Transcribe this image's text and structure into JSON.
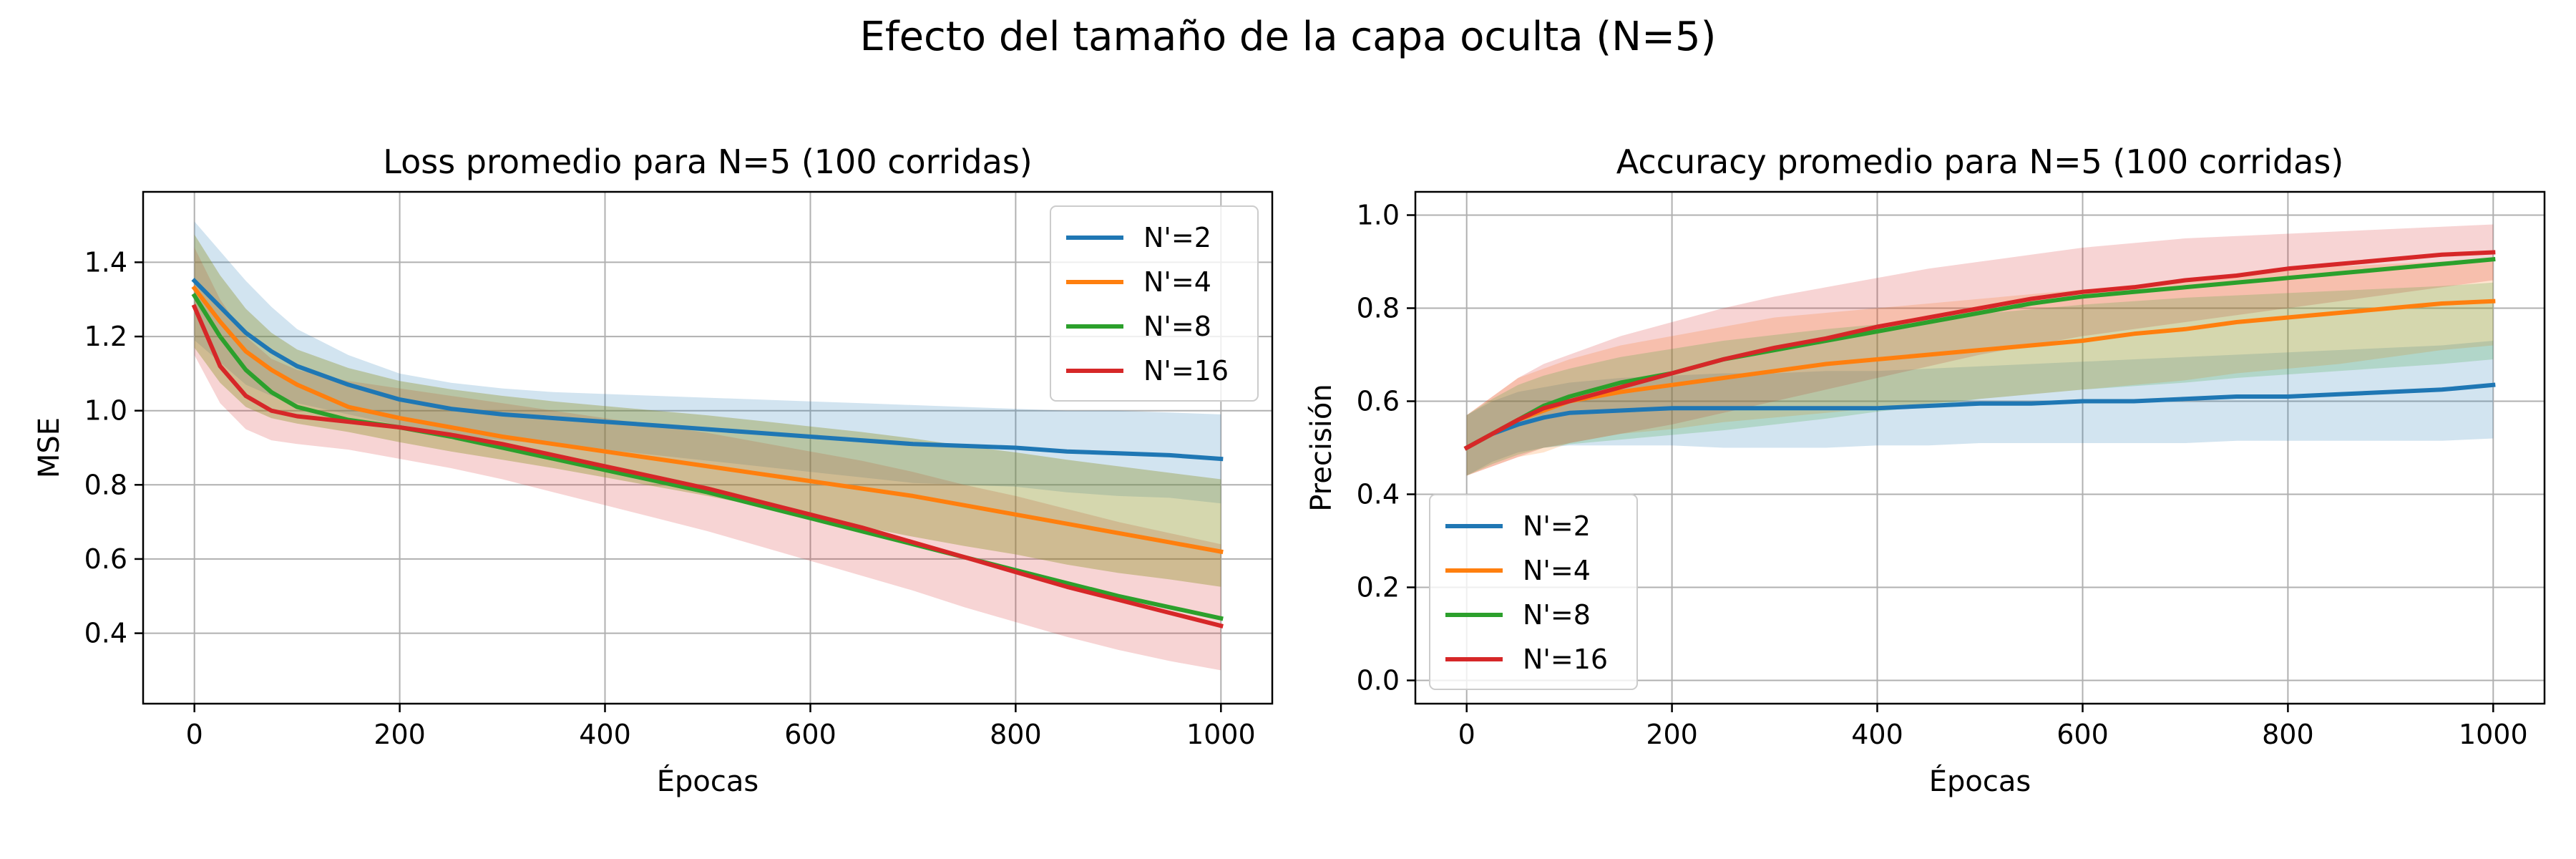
{
  "figure": {
    "suptitle": "Efecto del tamaño de la capa oculta (N=5)"
  },
  "series_meta": [
    {
      "name": "N'=2",
      "color": "#1f77b4"
    },
    {
      "name": "N'=4",
      "color": "#ff7f0e"
    },
    {
      "name": "N'=8",
      "color": "#2ca02c"
    },
    {
      "name": "N'=16",
      "color": "#d62728"
    }
  ],
  "chart_data": [
    {
      "type": "line",
      "title": "Loss promedio para N=5 (100 corridas)",
      "xlabel": "Épocas",
      "ylabel": "MSE",
      "xlim": [
        -50,
        1050
      ],
      "ylim": [
        0.21,
        1.59
      ],
      "xticks": [
        0,
        200,
        400,
        600,
        800,
        1000
      ],
      "yticks": [
        0.4,
        0.6,
        0.8,
        1.0,
        1.2,
        1.4
      ],
      "xtick_labels": [
        "0",
        "200",
        "400",
        "600",
        "800",
        "1000"
      ],
      "ytick_labels": [
        "0.4",
        "0.6",
        "0.8",
        "1.0",
        "1.2",
        "1.4"
      ],
      "grid": true,
      "legend_loc": "upper right",
      "x": [
        0,
        25,
        50,
        75,
        100,
        150,
        200,
        250,
        300,
        350,
        400,
        450,
        500,
        550,
        600,
        650,
        700,
        750,
        800,
        850,
        900,
        950,
        1000
      ],
      "series": [
        {
          "name": "N'=2",
          "values": [
            1.35,
            1.28,
            1.21,
            1.16,
            1.12,
            1.07,
            1.03,
            1.005,
            0.99,
            0.98,
            0.97,
            0.96,
            0.95,
            0.94,
            0.93,
            0.92,
            0.91,
            0.905,
            0.9,
            0.89,
            0.885,
            0.88,
            0.87
          ],
          "upper": [
            1.51,
            1.43,
            1.35,
            1.28,
            1.22,
            1.15,
            1.1,
            1.075,
            1.06,
            1.05,
            1.045,
            1.04,
            1.035,
            1.03,
            1.025,
            1.02,
            1.015,
            1.01,
            1.005,
            1.0,
            1.0,
            0.995,
            0.99
          ],
          "lower": [
            1.19,
            1.13,
            1.07,
            1.04,
            1.02,
            0.99,
            0.96,
            0.935,
            0.92,
            0.91,
            0.895,
            0.88,
            0.865,
            0.85,
            0.835,
            0.82,
            0.805,
            0.8,
            0.795,
            0.78,
            0.77,
            0.765,
            0.75
          ]
        },
        {
          "name": "N'=4",
          "values": [
            1.33,
            1.24,
            1.16,
            1.11,
            1.07,
            1.01,
            0.98,
            0.955,
            0.93,
            0.91,
            0.89,
            0.87,
            0.85,
            0.83,
            0.81,
            0.79,
            0.77,
            0.745,
            0.72,
            0.695,
            0.67,
            0.645,
            0.62
          ]
        },
        {
          "name": "N'=8",
          "values": [
            1.31,
            1.2,
            1.11,
            1.05,
            1.01,
            0.975,
            0.955,
            0.93,
            0.9,
            0.87,
            0.84,
            0.81,
            0.78,
            0.745,
            0.71,
            0.675,
            0.64,
            0.605,
            0.57,
            0.535,
            0.5,
            0.47,
            0.44
          ]
        },
        {
          "name": "N'=16",
          "values": [
            1.28,
            1.12,
            1.04,
            1.0,
            0.985,
            0.97,
            0.955,
            0.935,
            0.91,
            0.88,
            0.85,
            0.82,
            0.79,
            0.755,
            0.72,
            0.685,
            0.645,
            0.605,
            0.565,
            0.525,
            0.49,
            0.455,
            0.42
          ],
          "upper": [
            1.44,
            1.3,
            1.2,
            1.14,
            1.11,
            1.08,
            1.06,
            1.04,
            1.02,
            1.0,
            0.98,
            0.96,
            0.94,
            0.915,
            0.89,
            0.865,
            0.835,
            0.8,
            0.77,
            0.735,
            0.7,
            0.67,
            0.64
          ],
          "lower": [
            1.15,
            1.02,
            0.95,
            0.92,
            0.91,
            0.895,
            0.87,
            0.845,
            0.815,
            0.78,
            0.745,
            0.71,
            0.675,
            0.635,
            0.595,
            0.555,
            0.515,
            0.47,
            0.43,
            0.39,
            0.355,
            0.325,
            0.3
          ]
        }
      ]
    },
    {
      "type": "line",
      "title": "Accuracy promedio para N=5 (100 corridas)",
      "xlabel": "Épocas",
      "ylabel": "Precisión",
      "xlim": [
        -50,
        1050
      ],
      "ylim": [
        -0.05,
        1.05
      ],
      "xticks": [
        0,
        200,
        400,
        600,
        800,
        1000
      ],
      "yticks": [
        0.0,
        0.2,
        0.4,
        0.6,
        0.8,
        1.0
      ],
      "xtick_labels": [
        "0",
        "200",
        "400",
        "600",
        "800",
        "1000"
      ],
      "ytick_labels": [
        "0.0",
        "0.2",
        "0.4",
        "0.6",
        "0.8",
        "1.0"
      ],
      "grid": true,
      "legend_loc": "lower left",
      "x": [
        0,
        25,
        50,
        75,
        100,
        150,
        200,
        250,
        300,
        350,
        400,
        450,
        500,
        550,
        600,
        650,
        700,
        750,
        800,
        850,
        900,
        950,
        1000
      ],
      "series": [
        {
          "name": "N'=2",
          "values": [
            0.5,
            0.53,
            0.55,
            0.565,
            0.575,
            0.58,
            0.585,
            0.585,
            0.585,
            0.585,
            0.585,
            0.59,
            0.595,
            0.595,
            0.6,
            0.6,
            0.605,
            0.61,
            0.61,
            0.615,
            0.62,
            0.625,
            0.635
          ],
          "upper": [
            0.57,
            0.6,
            0.62,
            0.63,
            0.64,
            0.65,
            0.655,
            0.66,
            0.66,
            0.665,
            0.665,
            0.67,
            0.675,
            0.68,
            0.685,
            0.69,
            0.695,
            0.7,
            0.705,
            0.71,
            0.715,
            0.72,
            0.73
          ],
          "lower": [
            0.44,
            0.47,
            0.49,
            0.5,
            0.505,
            0.505,
            0.505,
            0.5,
            0.5,
            0.5,
            0.505,
            0.505,
            0.51,
            0.51,
            0.51,
            0.51,
            0.51,
            0.515,
            0.515,
            0.515,
            0.515,
            0.515,
            0.52
          ]
        },
        {
          "name": "N'=4",
          "values": [
            0.5,
            0.53,
            0.56,
            0.58,
            0.6,
            0.62,
            0.635,
            0.65,
            0.665,
            0.68,
            0.69,
            0.7,
            0.71,
            0.72,
            0.73,
            0.745,
            0.755,
            0.77,
            0.78,
            0.79,
            0.8,
            0.81,
            0.815
          ],
          "upper": [
            0.57,
            0.61,
            0.65,
            0.67,
            0.69,
            0.72,
            0.74,
            0.76,
            0.78,
            0.79,
            0.8,
            0.81,
            0.82,
            0.83,
            0.84,
            0.85,
            0.86,
            0.87,
            0.88,
            0.89,
            0.895,
            0.9,
            0.905
          ],
          "lower": [
            0.44,
            0.46,
            0.48,
            0.49,
            0.51,
            0.53,
            0.54,
            0.555,
            0.565,
            0.575,
            0.585,
            0.595,
            0.605,
            0.615,
            0.625,
            0.635,
            0.645,
            0.66,
            0.67,
            0.68,
            0.695,
            0.71,
            0.72
          ]
        },
        {
          "name": "N'=8",
          "values": [
            0.5,
            0.53,
            0.56,
            0.59,
            0.61,
            0.64,
            0.66,
            0.69,
            0.71,
            0.73,
            0.75,
            0.77,
            0.79,
            0.81,
            0.825,
            0.835,
            0.845,
            0.855,
            0.865,
            0.875,
            0.885,
            0.895,
            0.905
          ]
        },
        {
          "name": "N'=16",
          "values": [
            0.5,
            0.53,
            0.56,
            0.585,
            0.6,
            0.63,
            0.66,
            0.69,
            0.715,
            0.735,
            0.76,
            0.78,
            0.8,
            0.82,
            0.835,
            0.845,
            0.86,
            0.87,
            0.885,
            0.895,
            0.905,
            0.915,
            0.92
          ],
          "upper": [
            0.57,
            0.61,
            0.65,
            0.68,
            0.7,
            0.74,
            0.77,
            0.8,
            0.825,
            0.845,
            0.865,
            0.885,
            0.9,
            0.915,
            0.93,
            0.94,
            0.95,
            0.955,
            0.96,
            0.965,
            0.97,
            0.975,
            0.98
          ],
          "lower": [
            0.44,
            0.46,
            0.48,
            0.5,
            0.51,
            0.53,
            0.55,
            0.575,
            0.6,
            0.625,
            0.65,
            0.675,
            0.7,
            0.72,
            0.74,
            0.755,
            0.77,
            0.785,
            0.8,
            0.815,
            0.83,
            0.845,
            0.86
          ]
        }
      ]
    }
  ]
}
